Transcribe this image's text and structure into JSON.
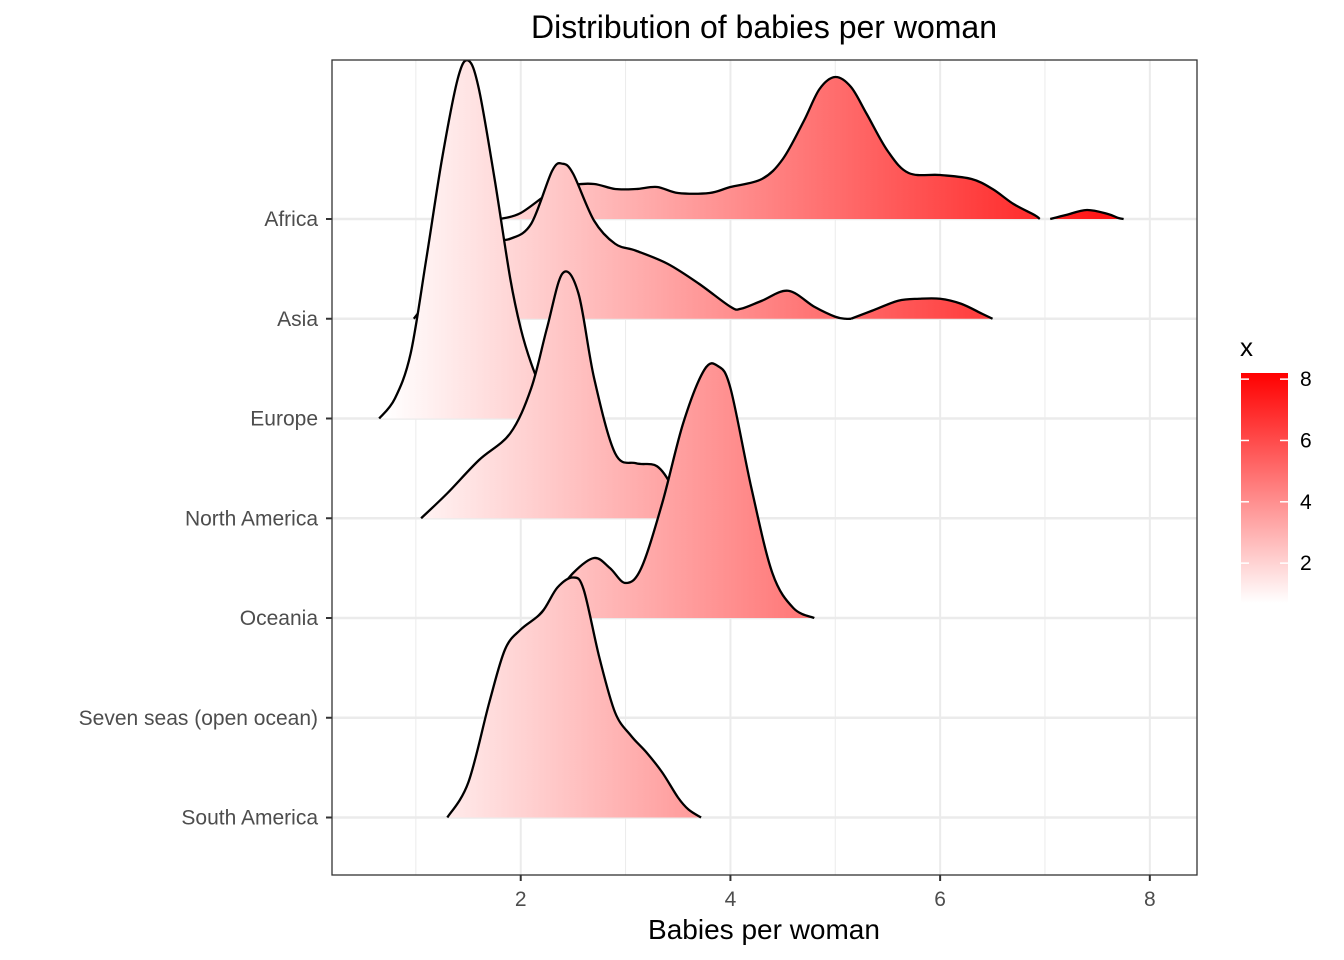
{
  "chart_data": {
    "type": "ridgeline",
    "title": "Distribution of babies per woman",
    "xlabel": "Babies per woman",
    "ylabel": "",
    "xlim": [
      0.2,
      8.45
    ],
    "x_ticks": [
      2,
      4,
      6,
      8
    ],
    "x_tick_labels": [
      "2",
      "4",
      "6",
      "8"
    ],
    "grid": true,
    "fill_gradient": {
      "variable": "x",
      "low_color": "#ffffff",
      "high_color": "#ff0000"
    },
    "legend": {
      "title": "x",
      "position": "right",
      "type": "colorbar",
      "range": [
        0.7,
        8.2
      ],
      "breaks": [
        2,
        4,
        6,
        8
      ],
      "break_labels": [
        "2",
        "4",
        "6",
        "8"
      ]
    },
    "categories": [
      "Africa",
      "Asia",
      "Europe",
      "North America",
      "Oceania",
      "Seven seas (open ocean)",
      "South America"
    ],
    "series": [
      {
        "name": "Africa",
        "segments": [
          {
            "x": [
              1.8,
              2.0,
              2.3,
              2.5,
              2.7,
              2.9,
              3.1,
              3.3,
              3.5,
              3.8,
              4.0,
              4.3,
              4.5,
              4.7,
              4.85,
              5.0,
              5.15,
              5.3,
              5.5,
              5.7,
              6.0,
              6.3,
              6.5,
              6.7,
              6.9,
              6.95
            ],
            "y": [
              0.0,
              0.06,
              0.28,
              0.34,
              0.35,
              0.3,
              0.3,
              0.32,
              0.26,
              0.26,
              0.32,
              0.4,
              0.6,
              0.98,
              1.3,
              1.42,
              1.32,
              1.05,
              0.68,
              0.46,
              0.44,
              0.4,
              0.3,
              0.15,
              0.04,
              0.0
            ]
          },
          {
            "x": [
              7.05,
              7.2,
              7.4,
              7.6,
              7.7,
              7.75
            ],
            "y": [
              0.0,
              0.04,
              0.09,
              0.05,
              0.01,
              0.0
            ]
          }
        ]
      },
      {
        "name": "Asia",
        "segments": [
          {
            "x": [
              0.98,
              1.2,
              1.5,
              1.7,
              1.9,
              2.1,
              2.3,
              2.4,
              2.5,
              2.7,
              2.9,
              3.1,
              3.4,
              3.7,
              4.0,
              4.1,
              4.3,
              4.55,
              4.8,
              5.0,
              5.1,
              5.15
            ],
            "y": [
              0.0,
              0.3,
              0.72,
              0.78,
              0.8,
              0.95,
              1.48,
              1.55,
              1.45,
              0.98,
              0.75,
              0.68,
              0.55,
              0.35,
              0.12,
              0.1,
              0.18,
              0.28,
              0.12,
              0.02,
              0.0,
              0.0
            ]
          },
          {
            "x": [
              5.15,
              5.35,
              5.6,
              5.8,
              6.0,
              6.2,
              6.4,
              6.5
            ],
            "y": [
              0.0,
              0.08,
              0.18,
              0.2,
              0.2,
              0.15,
              0.05,
              0.0
            ]
          }
        ]
      },
      {
        "name": "Europe",
        "segments": [
          {
            "x": [
              0.65,
              0.8,
              0.95,
              1.1,
              1.25,
              1.4,
              1.5,
              1.6,
              1.75,
              1.9,
              2.0,
              2.1,
              2.2,
              2.3,
              2.4,
              2.5
            ],
            "y": [
              0.0,
              0.2,
              0.65,
              1.6,
              2.6,
              3.4,
              3.58,
              3.3,
              2.4,
              1.4,
              0.9,
              0.55,
              0.3,
              0.15,
              0.05,
              0.0
            ]
          }
        ]
      },
      {
        "name": "North America",
        "segments": [
          {
            "x": [
              1.05,
              1.3,
              1.6,
              1.9,
              2.1,
              2.25,
              2.4,
              2.55,
              2.7,
              2.9,
              3.1,
              3.3,
              3.45,
              3.55
            ],
            "y": [
              0.0,
              0.25,
              0.58,
              0.85,
              1.3,
              1.9,
              2.45,
              2.25,
              1.4,
              0.65,
              0.55,
              0.52,
              0.3,
              0.0
            ]
          }
        ]
      },
      {
        "name": "Oceania",
        "segments": [
          {
            "x": [
              2.15,
              2.3,
              2.5,
              2.7,
              2.85,
              3.0,
              3.15,
              3.35,
              3.55,
              3.75,
              3.88,
              4.0,
              4.2,
              4.4,
              4.6,
              4.8
            ],
            "y": [
              0.0,
              0.18,
              0.45,
              0.6,
              0.5,
              0.35,
              0.5,
              1.15,
              1.95,
              2.48,
              2.52,
              2.3,
              1.3,
              0.45,
              0.1,
              0.0
            ]
          }
        ]
      },
      {
        "name": "Seven seas (open ocean)",
        "segments": []
      },
      {
        "name": "South America",
        "segments": [
          {
            "x": [
              1.3,
              1.5,
              1.7,
              1.85,
              2.0,
              2.2,
              2.35,
              2.5,
              2.6,
              2.75,
              2.9,
              3.05,
              3.2,
              3.35,
              3.5,
              3.6,
              3.72
            ],
            "y": [
              0.0,
              0.35,
              1.15,
              1.68,
              1.88,
              2.05,
              2.3,
              2.4,
              2.28,
              1.6,
              1.05,
              0.82,
              0.65,
              0.45,
              0.2,
              0.08,
              0.0
            ]
          }
        ]
      }
    ]
  }
}
